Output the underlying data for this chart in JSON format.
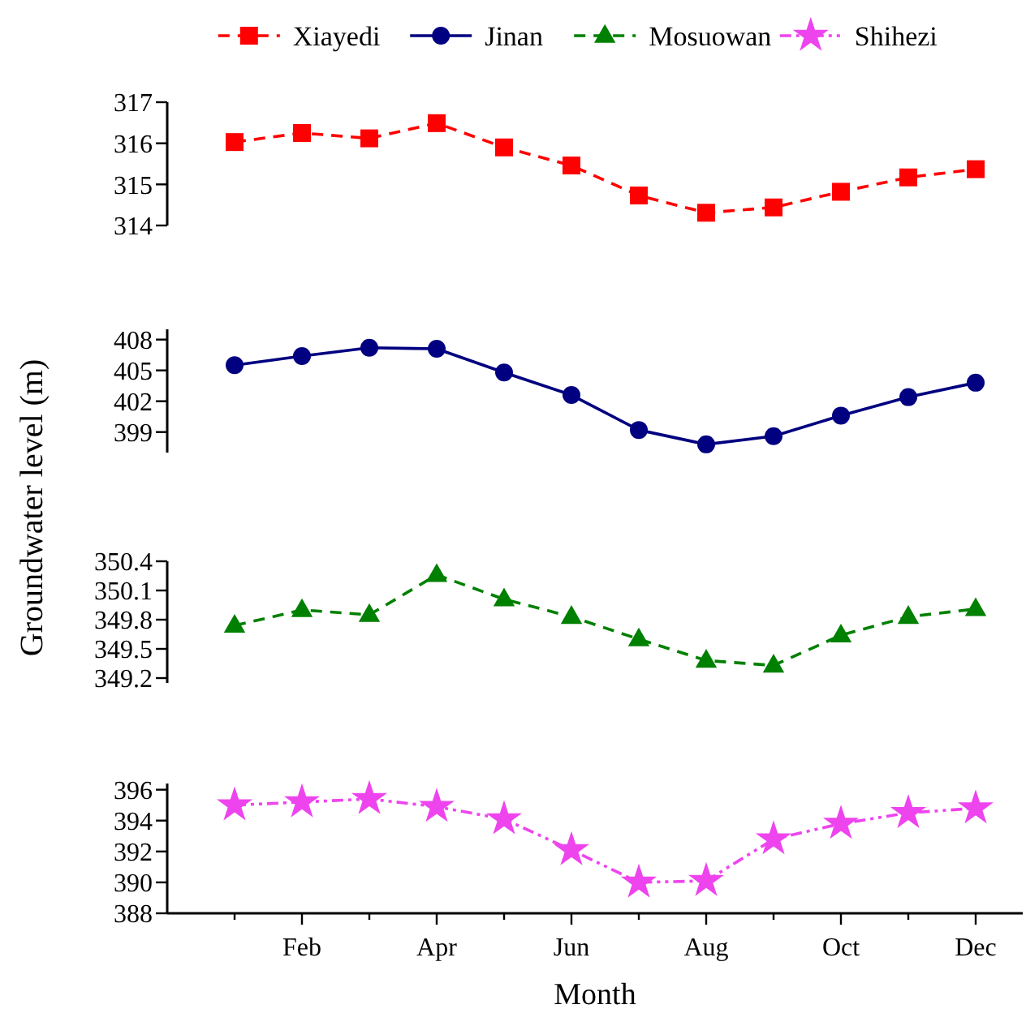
{
  "chart_data": [
    {
      "type": "line",
      "ylabel": "Groundwater level (m)",
      "legend": "top",
      "tick_labels": "y",
      "categories": [
        null,
        "Feb",
        null,
        "Apr",
        null,
        "Jun",
        null,
        "Aug",
        null,
        "Oct",
        null,
        "Dec"
      ],
      "ylim": [
        314,
        317
      ],
      "yticks": [
        314,
        315,
        316,
        317
      ],
      "series": [
        {
          "name": "Xiayedi",
          "color": "#ff0000",
          "marker": "square",
          "line_style": "dashed",
          "values": [
            316.03,
            316.25,
            316.12,
            316.49,
            315.9,
            315.46,
            314.73,
            314.31,
            314.44,
            314.82,
            315.17,
            315.37
          ]
        }
      ]
    },
    {
      "type": "line",
      "legend": "top",
      "tick_labels": "y",
      "categories": [
        null,
        "Feb",
        null,
        "Apr",
        null,
        "Jun",
        null,
        "Aug",
        null,
        "Oct",
        null,
        "Dec"
      ],
      "ylim": [
        397,
        409
      ],
      "yticks": [
        399,
        402,
        405,
        408
      ],
      "series": [
        {
          "name": "Jinan",
          "color": "#000080",
          "marker": "circle",
          "line_style": "solid",
          "values": [
            405.5,
            406.4,
            407.2,
            407.1,
            404.8,
            402.6,
            399.2,
            397.8,
            398.6,
            400.6,
            402.4,
            403.8
          ]
        }
      ]
    },
    {
      "type": "line",
      "legend": "top",
      "tick_labels": "y",
      "categories": [
        null,
        "Feb",
        null,
        "Apr",
        null,
        "Jun",
        null,
        "Aug",
        null,
        "Oct",
        null,
        "Dec"
      ],
      "ylim": [
        349.15,
        350.4
      ],
      "yticks": [
        349.2,
        349.5,
        349.8,
        350.1,
        350.4
      ],
      "series": [
        {
          "name": "Mosuowan",
          "color": "#008000",
          "marker": "triangle",
          "line_style": "dashed",
          "values": [
            349.74,
            349.9,
            349.85,
            350.26,
            350.01,
            349.83,
            349.6,
            349.38,
            349.33,
            349.64,
            349.83,
            349.91
          ]
        }
      ]
    },
    {
      "type": "line",
      "xlabel": "Month",
      "legend": "top",
      "categories": [
        null,
        "Feb",
        null,
        "Apr",
        null,
        "Jun",
        null,
        "Aug",
        null,
        "Oct",
        null,
        "Dec"
      ],
      "ylim": [
        388,
        396.4
      ],
      "yticks": [
        388,
        390,
        392,
        394,
        396
      ],
      "series": [
        {
          "name": "Shihezi",
          "color": "#ee44ee",
          "marker": "star",
          "line_style": "dotted",
          "values": [
            395.0,
            395.2,
            395.4,
            394.9,
            394.1,
            392.1,
            390.0,
            390.1,
            392.8,
            393.8,
            394.5,
            394.8
          ]
        }
      ]
    }
  ]
}
